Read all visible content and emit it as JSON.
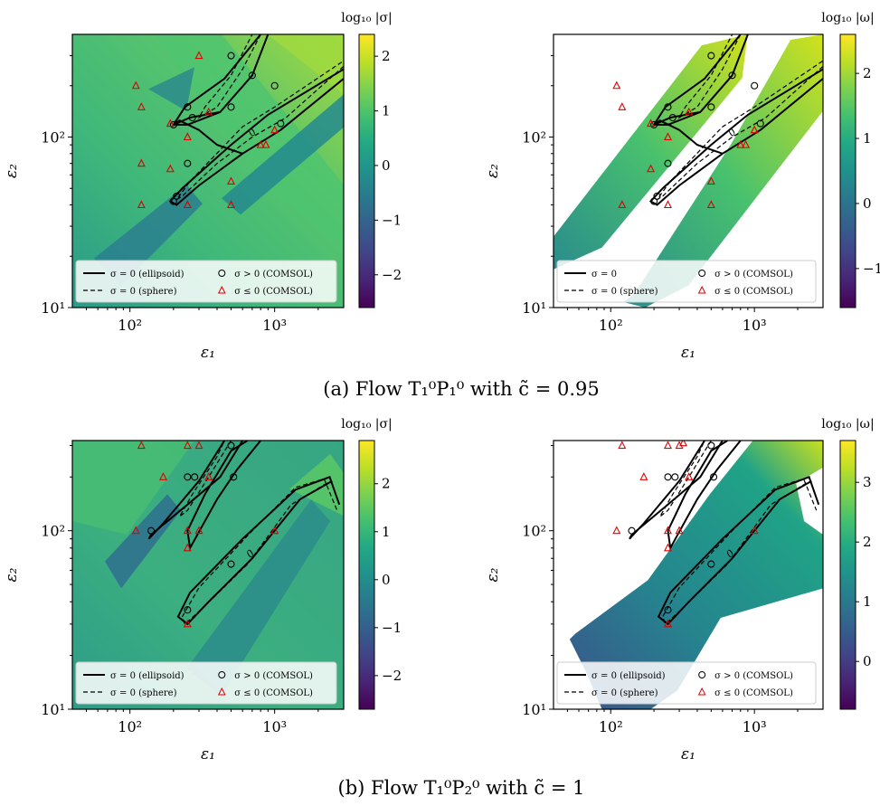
{
  "captions": {
    "a": "(a) Flow T₁⁰P₁⁰ with c̃ = 0.95",
    "b": "(b) Flow T₁⁰P₂⁰ with c̃ = 1"
  },
  "colors": {
    "colormap": "viridis",
    "zero_contour": "#000000",
    "comsol_positive_marker": "#000000",
    "comsol_nonpositive_marker": "#e00000"
  },
  "chart_data": [
    {
      "type": "heatmap",
      "panel": "a-left",
      "xlabel": "ε₁",
      "ylabel": "ε₂",
      "xscale": "log",
      "yscale": "log",
      "xlim": [
        40,
        3000
      ],
      "ylim": [
        10,
        400
      ],
      "x_ticks": [
        {
          "value": 100,
          "label": "10²"
        },
        {
          "value": 1000,
          "label": "10³"
        }
      ],
      "y_ticks": [
        {
          "value": 10,
          "label": "10¹"
        },
        {
          "value": 100,
          "label": "10²"
        }
      ],
      "colorbar": {
        "label": "log₁₀ |σ|",
        "range": [
          -2.6,
          2.4
        ],
        "ticks": [
          -2,
          -1,
          0,
          1,
          2
        ]
      },
      "legend": {
        "placement": "lower",
        "entries": [
          "σ = 0 (ellipsoid)",
          "σ > 0 (COMSOL)",
          "σ = 0 (sphere)",
          "σ ≤ 0 (COMSOL)"
        ]
      },
      "contour_label": "0",
      "comsol_positive": [
        [
          200,
          42
        ],
        [
          210,
          45
        ],
        [
          250,
          70
        ],
        [
          200,
          118
        ],
        [
          250,
          150
        ],
        [
          270,
          130
        ],
        [
          500,
          300
        ],
        [
          700,
          230
        ],
        [
          1000,
          200
        ],
        [
          500,
          150
        ],
        [
          1100,
          120
        ]
      ],
      "comsol_nonpositive": [
        [
          110,
          200
        ],
        [
          120,
          150
        ],
        [
          120,
          70
        ],
        [
          120,
          40
        ],
        [
          190,
          65
        ],
        [
          190,
          120
        ],
        [
          250,
          100
        ],
        [
          250,
          40
        ],
        [
          300,
          300
        ],
        [
          350,
          140
        ],
        [
          500,
          55
        ],
        [
          500,
          40
        ],
        [
          800,
          90
        ],
        [
          870,
          90
        ],
        [
          1000,
          110
        ]
      ]
    },
    {
      "type": "heatmap",
      "panel": "a-right",
      "xlabel": "ε₁",
      "ylabel": "ε₂",
      "xscale": "log",
      "yscale": "log",
      "xlim": [
        40,
        3000
      ],
      "ylim": [
        10,
        400
      ],
      "x_ticks": [
        {
          "value": 100,
          "label": "10²"
        },
        {
          "value": 1000,
          "label": "10³"
        }
      ],
      "y_ticks": [
        {
          "value": 10,
          "label": "10¹"
        },
        {
          "value": 100,
          "label": "10²"
        }
      ],
      "colorbar": {
        "label": "log₁₀ |ω|",
        "range": [
          -1.6,
          2.6
        ],
        "ticks": [
          -1,
          0,
          1,
          2
        ]
      },
      "legend": {
        "placement": "lower",
        "entries": [
          "σ = 0",
          "σ > 0 (COMSOL)",
          "σ = 0 (sphere)",
          "σ ≤ 0 (COMSOL)"
        ]
      },
      "contour_label": "0",
      "comsol_positive": [
        [
          200,
          42
        ],
        [
          210,
          45
        ],
        [
          250,
          70
        ],
        [
          200,
          118
        ],
        [
          250,
          150
        ],
        [
          270,
          130
        ],
        [
          500,
          300
        ],
        [
          700,
          230
        ],
        [
          1000,
          200
        ],
        [
          500,
          150
        ],
        [
          1100,
          120
        ]
      ],
      "comsol_nonpositive": [
        [
          110,
          200
        ],
        [
          120,
          150
        ],
        [
          120,
          40
        ],
        [
          190,
          65
        ],
        [
          190,
          120
        ],
        [
          250,
          100
        ],
        [
          250,
          40
        ],
        [
          350,
          140
        ],
        [
          500,
          55
        ],
        [
          500,
          40
        ],
        [
          800,
          90
        ],
        [
          870,
          90
        ],
        [
          1000,
          110
        ]
      ]
    },
    {
      "type": "heatmap",
      "panel": "b-left",
      "xlabel": "ε₁",
      "ylabel": "ε₂",
      "xscale": "log",
      "yscale": "log",
      "xlim": [
        40,
        3000
      ],
      "ylim": [
        10,
        320
      ],
      "x_ticks": [
        {
          "value": 100,
          "label": "10²"
        },
        {
          "value": 1000,
          "label": "10³"
        }
      ],
      "y_ticks": [
        {
          "value": 10,
          "label": "10¹"
        },
        {
          "value": 100,
          "label": "10²"
        }
      ],
      "colorbar": {
        "label": "log₁₀ |σ|",
        "range": [
          -2.7,
          2.9
        ],
        "ticks": [
          -2,
          -1,
          0,
          1,
          2
        ]
      },
      "legend": {
        "placement": "lower",
        "entries": [
          "σ = 0 (ellipsoid)",
          "σ > 0 (COMSOL)",
          "σ = 0 (sphere)",
          "σ ≤ 0 (COMSOL)"
        ]
      },
      "contour_label": "0",
      "comsol_positive": [
        [
          140,
          100
        ],
        [
          250,
          200
        ],
        [
          280,
          200
        ],
        [
          500,
          300
        ],
        [
          520,
          200
        ],
        [
          250,
          36
        ],
        [
          500,
          65
        ]
      ],
      "comsol_nonpositive": [
        [
          110,
          100
        ],
        [
          120,
          300
        ],
        [
          170,
          200
        ],
        [
          250,
          300
        ],
        [
          300,
          300
        ],
        [
          250,
          100
        ],
        [
          250,
          80
        ],
        [
          300,
          100
        ],
        [
          350,
          200
        ],
        [
          250,
          30
        ],
        [
          1000,
          100
        ]
      ]
    },
    {
      "type": "heatmap",
      "panel": "b-right",
      "xlabel": "ε₁",
      "ylabel": "ε₂",
      "xscale": "log",
      "yscale": "log",
      "xlim": [
        40,
        3000
      ],
      "ylim": [
        10,
        320
      ],
      "x_ticks": [
        {
          "value": 100,
          "label": "10²"
        },
        {
          "value": 1000,
          "label": "10³"
        }
      ],
      "y_ticks": [
        {
          "value": 10,
          "label": "10¹"
        },
        {
          "value": 100,
          "label": "10²"
        }
      ],
      "colorbar": {
        "label": "log₁₀ |ω|",
        "range": [
          -0.8,
          3.7
        ],
        "ticks": [
          0,
          1,
          2,
          3
        ]
      },
      "legend": {
        "placement": "lower",
        "entries": [
          "σ = 0 (ellipsoid)",
          "σ > 0 (COMSOL)",
          "σ = 0 (sphere)",
          "σ ≤ 0 (COMSOL)"
        ]
      },
      "contour_label": "0",
      "comsol_positive": [
        [
          140,
          100
        ],
        [
          250,
          200
        ],
        [
          280,
          200
        ],
        [
          500,
          300
        ],
        [
          520,
          200
        ],
        [
          250,
          36
        ],
        [
          500,
          65
        ]
      ],
      "comsol_nonpositive": [
        [
          110,
          100
        ],
        [
          120,
          300
        ],
        [
          170,
          200
        ],
        [
          250,
          300
        ],
        [
          300,
          300
        ],
        [
          320,
          310
        ],
        [
          250,
          100
        ],
        [
          250,
          80
        ],
        [
          300,
          100
        ],
        [
          350,
          200
        ],
        [
          250,
          30
        ],
        [
          1000,
          100
        ]
      ]
    }
  ]
}
